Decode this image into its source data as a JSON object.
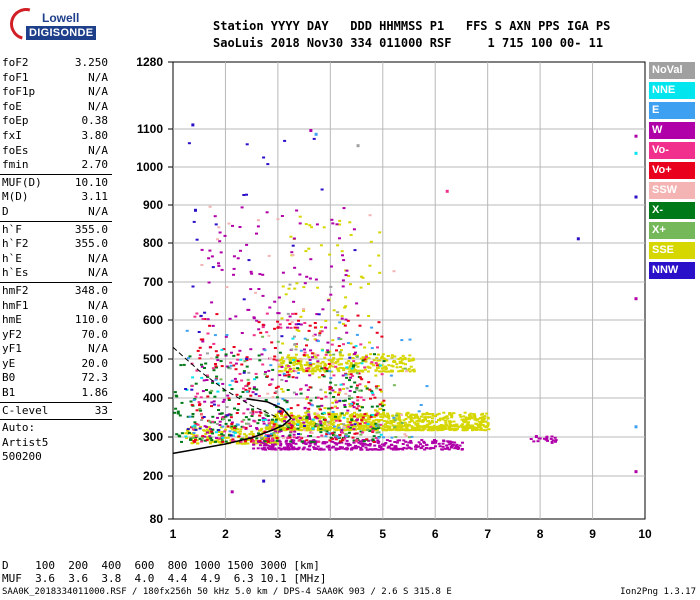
{
  "logo": {
    "line1": "Lowell",
    "line2": "DIGISONDE"
  },
  "header": {
    "row1": "Station YYYY DAY   DDD HHMMSS P1   FFS S AXN PPS IGA PS",
    "row2": "SaoLuis 2018 Nov30 334 011000 RSF     1 715 100 00- 11"
  },
  "params": [
    {
      "name": "foF2",
      "value": "3.250"
    },
    {
      "name": "foF1",
      "value": "N/A"
    },
    {
      "name": "foF1p",
      "value": "N/A"
    },
    {
      "name": "foE",
      "value": "N/A"
    },
    {
      "name": "foEp",
      "value": "0.38"
    },
    {
      "name": "fxI",
      "value": "3.80"
    },
    {
      "name": "foEs",
      "value": "N/A"
    },
    {
      "name": "fmin",
      "value": "2.70"
    },
    {
      "sep": true
    },
    {
      "name": "MUF(D)",
      "value": "10.10"
    },
    {
      "name": "M(D)",
      "value": "3.11"
    },
    {
      "name": "D",
      "value": "N/A"
    },
    {
      "sep": true
    },
    {
      "name": "h`F",
      "value": "355.0"
    },
    {
      "name": "h`F2",
      "value": "355.0"
    },
    {
      "name": "h`E",
      "value": "N/A"
    },
    {
      "name": "h`Es",
      "value": "N/A"
    },
    {
      "sep": true
    },
    {
      "name": "hmF2",
      "value": "348.0"
    },
    {
      "name": "hmF1",
      "value": "N/A"
    },
    {
      "name": "hmE",
      "value": "110.0"
    },
    {
      "name": "yF2",
      "value": "70.0"
    },
    {
      "name": "yF1",
      "value": "N/A"
    },
    {
      "name": "yE",
      "value": "20.0"
    },
    {
      "name": "B0",
      "value": "72.3"
    },
    {
      "name": "B1",
      "value": "1.86"
    },
    {
      "sep": true
    },
    {
      "name": "C-level",
      "value": "33"
    },
    {
      "sep": true
    }
  ],
  "auto": {
    "line1": "Auto:",
    "line2": "Artist5",
    "line3": "500200"
  },
  "legend": [
    {
      "label": "NoVal",
      "color": "#a0a0a0",
      "text": "#ffffff"
    },
    {
      "label": "NNE",
      "color": "#00e5ee",
      "text": "#ffffff"
    },
    {
      "label": "E",
      "color": "#3ea0f0",
      "text": "#ffffff"
    },
    {
      "label": "W",
      "color": "#b000a8",
      "text": "#ffffff"
    },
    {
      "label": "Vo-",
      "color": "#f0308c",
      "text": "#ffffff"
    },
    {
      "label": "Vo+",
      "color": "#e8001c",
      "text": "#ffffff"
    },
    {
      "label": "SSW",
      "color": "#f4b4b4",
      "text": "#ffffff"
    },
    {
      "label": "X-",
      "color": "#007a18",
      "text": "#ffffff"
    },
    {
      "label": "X+",
      "color": "#74b85a",
      "text": "#ffffff"
    },
    {
      "label": "SSE",
      "color": "#d6d600",
      "text": "#ffffff"
    },
    {
      "label": "NNW",
      "color": "#2a10c8",
      "text": "#ffffff"
    }
  ],
  "footer": {
    "row1": "D    100  200  400  600  800 1000 1500 3000 [km]",
    "row2": "MUF  3.6  3.6  3.8  4.0  4.4  4.9  6.3 10.1 [MHz]",
    "row3": "SAA0K_2018334011000.RSF / 180fx256h 50 kHz 5.0 km / DPS-4 SAA0K 903 / 2.6 S 315.8 E",
    "version": "Ion2Png 1.3.17"
  },
  "chart_data": {
    "type": "scatter",
    "xlim": [
      1,
      10
    ],
    "ylim": [
      80,
      1280
    ],
    "xticks": [
      "1",
      "2",
      "3",
      "4",
      "5",
      "6",
      "7",
      "8",
      "9",
      "10"
    ],
    "yticks": [
      "80",
      "200",
      "300",
      "400",
      "500",
      "600",
      "700",
      "800",
      "900",
      "1000",
      "1100",
      "1280"
    ],
    "ytick_values": [
      80,
      200,
      300,
      400,
      500,
      600,
      700,
      800,
      900,
      1000,
      1100,
      1280
    ],
    "grid": true,
    "legend_position": "right",
    "series": [
      {
        "name": "SSE",
        "color": "#d6d600",
        "clusters": [
          {
            "x": [
              2.8,
              7.0
            ],
            "y": [
              320,
              365
            ],
            "n": 900
          },
          {
            "x": [
              3.0,
              5.6
            ],
            "y": [
              470,
              515
            ],
            "n": 260
          },
          {
            "x": [
              1.2,
              3.0
            ],
            "y": [
              285,
              330
            ],
            "n": 160
          },
          {
            "x": [
              3.0,
              5.0
            ],
            "y": [
              360,
              880
            ],
            "n": 120
          }
        ]
      },
      {
        "name": "W",
        "color": "#b000a8",
        "clusters": [
          {
            "x": [
              2.5,
              6.5
            ],
            "y": [
              270,
              295
            ],
            "n": 320
          },
          {
            "x": [
              1.5,
              4.5
            ],
            "y": [
              300,
              900
            ],
            "n": 230
          },
          {
            "x": [
              7.8,
              8.3
            ],
            "y": [
              290,
              305
            ],
            "n": 15
          }
        ]
      },
      {
        "name": "X-",
        "color": "#007a18",
        "clusters": [
          {
            "x": [
              1.0,
              5.0
            ],
            "y": [
              290,
              520
            ],
            "n": 230
          }
        ]
      },
      {
        "name": "Vo+",
        "color": "#e8001c",
        "clusters": [
          {
            "x": [
              1.3,
              5.0
            ],
            "y": [
              290,
              620
            ],
            "n": 200
          }
        ]
      },
      {
        "name": "Vo-",
        "color": "#f0308c",
        "clusters": [
          {
            "x": [
              1.3,
              5.0
            ],
            "y": [
              290,
              620
            ],
            "n": 130
          }
        ]
      },
      {
        "name": "E",
        "color": "#3ea0f0",
        "clusters": [
          {
            "x": [
              1.2,
              6.0
            ],
            "y": [
              300,
              600
            ],
            "n": 60
          }
        ]
      },
      {
        "name": "NNE",
        "color": "#00e5ee",
        "clusters": [
          {
            "x": [
              1.2,
              5.0
            ],
            "y": [
              300,
              560
            ],
            "n": 40
          }
        ]
      },
      {
        "name": "X+",
        "color": "#74b85a",
        "clusters": [
          {
            "x": [
              1.2,
              5.5
            ],
            "y": [
              300,
              560
            ],
            "n": 50
          }
        ]
      },
      {
        "name": "SSW",
        "color": "#f4b4b4",
        "clusters": [
          {
            "x": [
              1.5,
              5.5
            ],
            "y": [
              300,
              900
            ],
            "n": 40
          }
        ]
      },
      {
        "name": "NNW",
        "color": "#2a10c8",
        "clusters": [
          {
            "x": [
              1.2,
              4.5
            ],
            "y": [
              300,
              1120
            ],
            "n": 45
          }
        ]
      },
      {
        "name": "NoVal",
        "color": "#a0a0a0",
        "clusters": [
          {
            "x": [
              1.5,
              4.5
            ],
            "y": [
              300,
              700
            ],
            "n": 30
          }
        ]
      }
    ],
    "isolated_points": [
      {
        "x": 1.35,
        "y": 1115,
        "color": "#2a10c8"
      },
      {
        "x": 1.4,
        "y": 890,
        "color": "#2a10c8"
      },
      {
        "x": 9.8,
        "y": 1085,
        "color": "#b000a8"
      },
      {
        "x": 9.8,
        "y": 1040,
        "color": "#00e5ee"
      },
      {
        "x": 9.8,
        "y": 925,
        "color": "#2a10c8"
      },
      {
        "x": 9.8,
        "y": 660,
        "color": "#b000a8"
      },
      {
        "x": 9.8,
        "y": 330,
        "color": "#3ea0f0"
      },
      {
        "x": 9.8,
        "y": 215,
        "color": "#b000a8"
      },
      {
        "x": 8.7,
        "y": 815,
        "color": "#2a10c8"
      },
      {
        "x": 6.2,
        "y": 940,
        "color": "#f0308c"
      },
      {
        "x": 2.1,
        "y": 160,
        "color": "#b000a8"
      },
      {
        "x": 2.7,
        "y": 190,
        "color": "#2a10c8"
      },
      {
        "x": 7.9,
        "y": 305,
        "color": "#b000a8"
      },
      {
        "x": 8.1,
        "y": 300,
        "color": "#b000a8"
      },
      {
        "x": 8.2,
        "y": 290,
        "color": "#b000a8"
      },
      {
        "x": 3.6,
        "y": 1100,
        "color": "#b000a8"
      },
      {
        "x": 3.7,
        "y": 1090,
        "color": "#3ea0f0"
      },
      {
        "x": 4.5,
        "y": 1060,
        "color": "#a0a0a0"
      }
    ],
    "profile_line": [
      [
        1.0,
        258
      ],
      [
        1.5,
        270
      ],
      [
        2.0,
        282
      ],
      [
        2.5,
        298
      ],
      [
        2.9,
        318
      ],
      [
        3.1,
        330
      ],
      [
        3.25,
        348
      ],
      [
        3.1,
        372
      ],
      [
        2.8,
        390
      ],
      [
        2.4,
        398
      ]
    ],
    "dashed_line": [
      [
        1.0,
        530
      ],
      [
        1.5,
        470
      ],
      [
        2.0,
        420
      ],
      [
        2.5,
        380
      ],
      [
        3.0,
        350
      ]
    ]
  }
}
